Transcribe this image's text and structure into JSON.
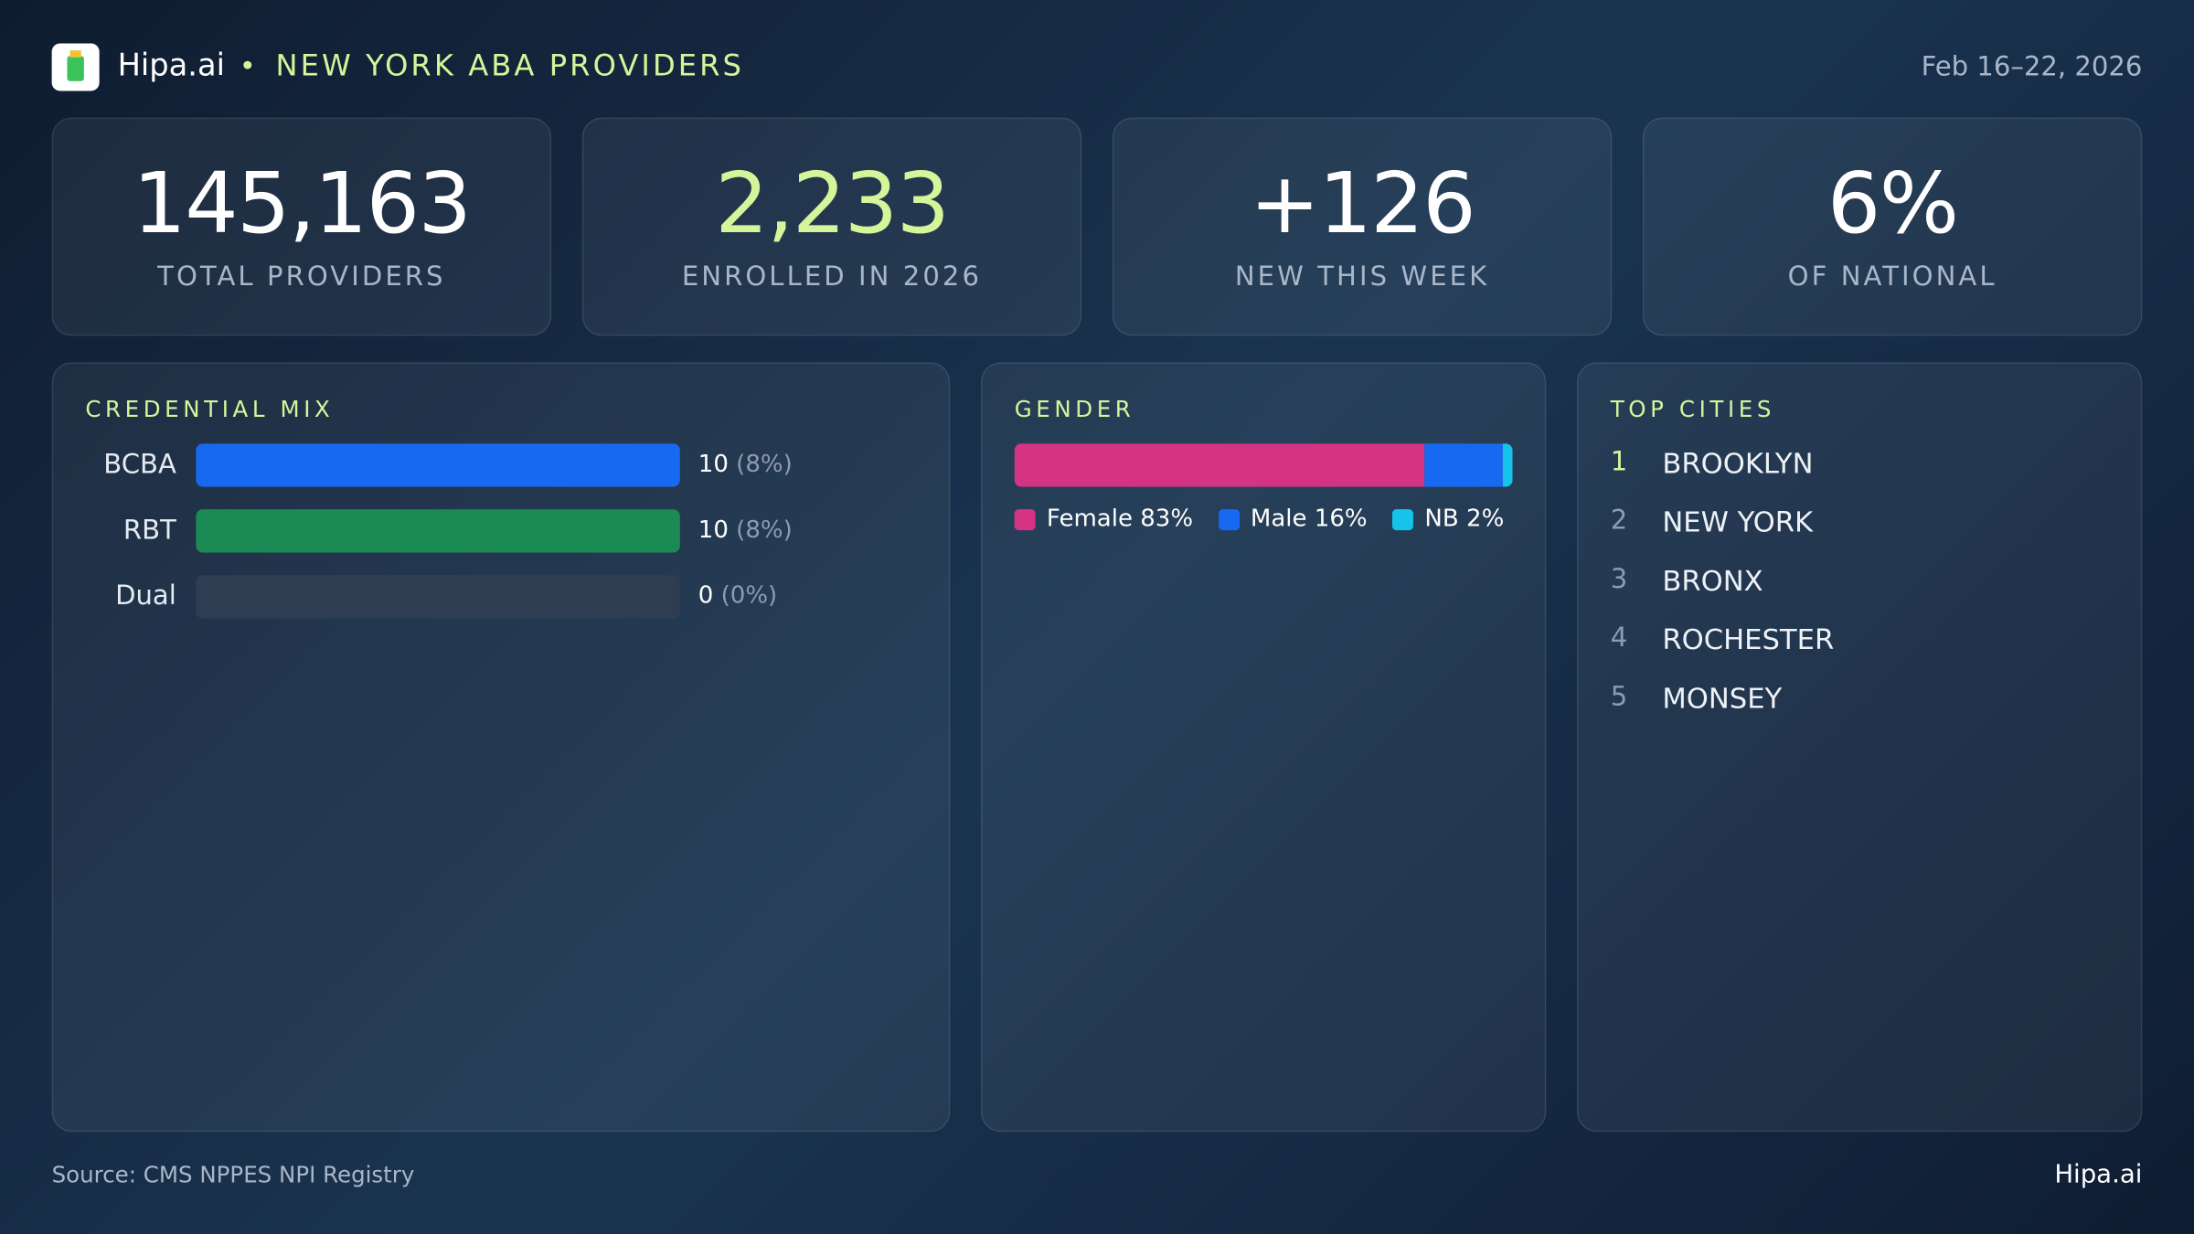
{
  "header": {
    "brand": "Hipa.ai",
    "bullet": "•",
    "title": "NEW YORK ABA PROVIDERS",
    "date": "Feb 16–22, 2026"
  },
  "kpis": [
    {
      "value": "145,163",
      "label": "TOTAL PROVIDERS",
      "color": "#ffffff"
    },
    {
      "value": "2,233",
      "label": "ENROLLED IN 2026",
      "color": "#d4f59a"
    },
    {
      "value": "+126",
      "label": "NEW THIS WEEK",
      "color": "#ffffff"
    },
    {
      "value": "6%",
      "label": "OF NATIONAL",
      "color": "#ffffff"
    }
  ],
  "credential_mix": {
    "title": "CREDENTIAL MIX",
    "rows": [
      {
        "name": "BCBA",
        "value": 10,
        "pct_label": "(8%)",
        "color": "#1769f2"
      },
      {
        "name": "RBT",
        "value": 10,
        "pct_label": "(8%)",
        "color": "#1c8a55"
      },
      {
        "name": "Dual",
        "value": 0,
        "pct_label": "(0%)",
        "color": "#8a97a8"
      }
    ]
  },
  "gender": {
    "title": "GENDER",
    "segments": [
      {
        "name": "Female",
        "value": 83,
        "value_label": "83%",
        "color": "#d63384"
      },
      {
        "name": "Male",
        "value": 16,
        "value_label": "16%",
        "color": "#1769f2"
      },
      {
        "name": "NB",
        "value": 2,
        "value_label": "2%",
        "color": "#17c3e8"
      }
    ]
  },
  "top_cities": {
    "title": "TOP CITIES",
    "items": [
      {
        "rank": 1,
        "name": "BROOKLYN"
      },
      {
        "rank": 2,
        "name": "NEW YORK"
      },
      {
        "rank": 3,
        "name": "BRONX"
      },
      {
        "rank": 4,
        "name": "ROCHESTER"
      },
      {
        "rank": 5,
        "name": "MONSEY"
      }
    ]
  },
  "footer": {
    "source": "Source: CMS NPPES NPI Registry",
    "brand": "Hipa.ai"
  }
}
